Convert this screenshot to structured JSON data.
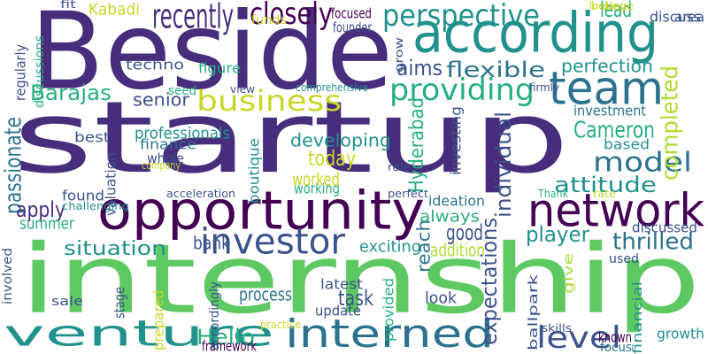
{
  "palette": {
    "dark_purple": "#440154",
    "indigo": "#472d7b",
    "blue": "#3b528b",
    "steel": "#2c728e",
    "teal": "#21918c",
    "sea_green": "#28ae80",
    "green": "#5ec962",
    "lime": "#addc30",
    "yellow": "#c8d627"
  },
  "words": [
    {
      "text": "startup",
      "color": "#472d7b",
      "vertical": false
    },
    {
      "text": "internship",
      "color": "#5ec962",
      "vertical": false
    },
    {
      "text": "Beside",
      "color": "#472d7b",
      "vertical": false
    },
    {
      "text": "opportunity",
      "color": "#440154",
      "vertical": false
    },
    {
      "text": "according",
      "color": "#21918c",
      "vertical": false
    },
    {
      "text": "team",
      "color": "#2c728e",
      "vertical": false
    },
    {
      "text": "network",
      "color": "#440154",
      "vertical": false
    },
    {
      "text": "venture",
      "color": "#21918c",
      "vertical": false
    },
    {
      "text": "interned",
      "color": "#2c728e",
      "vertical": false
    },
    {
      "text": "investor",
      "color": "#3b528b",
      "vertical": false
    },
    {
      "text": "perspective",
      "color": "#21918c",
      "vertical": false
    },
    {
      "text": "providing",
      "color": "#28ae80",
      "vertical": false
    },
    {
      "text": "business",
      "color": "#c8d627",
      "vertical": false
    },
    {
      "text": "model",
      "color": "#2c728e",
      "vertical": false
    },
    {
      "text": "level",
      "color": "#3b528b",
      "vertical": false
    },
    {
      "text": "recently",
      "color": "#472d7b",
      "vertical": false
    },
    {
      "text": "closely",
      "color": "#440154",
      "vertical": false
    },
    {
      "text": "lead",
      "color": "#28ae80",
      "vertical": false
    },
    {
      "text": "flexible",
      "color": "#2c728e",
      "vertical": false
    },
    {
      "text": "aims",
      "color": "#3b528b",
      "vertical": false
    },
    {
      "text": "perfection",
      "color": "#21918c",
      "vertical": false
    },
    {
      "text": "Barajas",
      "color": "#28ae80",
      "vertical": false
    },
    {
      "text": "senior",
      "color": "#3b528b",
      "vertical": false
    },
    {
      "text": "Cameron",
      "color": "#28ae80",
      "vertical": false
    },
    {
      "text": "investment",
      "color": "#2c728e",
      "vertical": false
    },
    {
      "text": "completed",
      "color": "#addc30",
      "vertical": true
    },
    {
      "text": "individual",
      "color": "#3b528b",
      "vertical": true
    },
    {
      "text": "passionate",
      "color": "#2c728e",
      "vertical": true
    },
    {
      "text": "today",
      "color": "#c8d627",
      "vertical": false
    },
    {
      "text": "attitude",
      "color": "#21918c",
      "vertical": false
    },
    {
      "text": "thrilled",
      "color": "#2c728e",
      "vertical": false
    },
    {
      "text": "player",
      "color": "#21918c",
      "vertical": false
    },
    {
      "text": "good",
      "color": "#3b528b",
      "vertical": false
    },
    {
      "text": "situation",
      "color": "#21918c",
      "vertical": false
    },
    {
      "text": "apply",
      "color": "#472d7b",
      "vertical": false
    },
    {
      "text": "Hello",
      "color": "#28ae80",
      "vertical": false
    },
    {
      "text": "task",
      "color": "#3b528b",
      "vertical": false
    },
    {
      "text": "expectations",
      "color": "#3b528b",
      "vertical": true
    },
    {
      "text": "reach",
      "color": "#2c728e",
      "vertical": true
    },
    {
      "text": "Hyderabad",
      "color": "#28ae80",
      "vertical": true
    },
    {
      "text": "developing",
      "color": "#21918c",
      "vertical": false
    },
    {
      "text": "professionals",
      "color": "#21918c",
      "vertical": false
    },
    {
      "text": "finance",
      "color": "#2c728e",
      "vertical": false
    },
    {
      "text": "worked",
      "color": "#c8d627",
      "vertical": false
    },
    {
      "text": "working",
      "color": "#28ae80",
      "vertical": false
    },
    {
      "text": "bank",
      "color": "#3b528b",
      "vertical": false
    },
    {
      "text": "exciting",
      "color": "#21918c",
      "vertical": false
    },
    {
      "text": "addition",
      "color": "#addc30",
      "vertical": false
    },
    {
      "text": "summer",
      "color": "#28ae80",
      "vertical": false
    },
    {
      "text": "always",
      "color": "#28ae80",
      "vertical": false
    },
    {
      "text": "ideation",
      "color": "#2c728e",
      "vertical": false
    },
    {
      "text": "discussed",
      "color": "#3b528b",
      "vertical": false
    },
    {
      "text": "process",
      "color": "#2c728e",
      "vertical": false
    },
    {
      "text": "latest",
      "color": "#3b528b",
      "vertical": false
    },
    {
      "text": "update",
      "color": "#3b528b",
      "vertical": false
    },
    {
      "text": "look",
      "color": "#3b528b",
      "vertical": false
    },
    {
      "text": "known",
      "color": "#440154",
      "vertical": false
    },
    {
      "text": "focus",
      "color": "#2c728e",
      "vertical": false
    },
    {
      "text": "growth",
      "color": "#21918c",
      "vertical": false
    },
    {
      "text": "framework",
      "color": "#440154",
      "vertical": false
    },
    {
      "text": "techno",
      "color": "#3b528b",
      "vertical": false
    },
    {
      "text": "Kabadi",
      "color": "#c8d627",
      "vertical": false
    },
    {
      "text": "fit",
      "color": "#3b528b",
      "vertical": false
    },
    {
      "text": "believe",
      "color": "#c8d627",
      "vertical": false
    },
    {
      "text": "funds",
      "color": "#c8d627",
      "vertical": false
    },
    {
      "text": "focused",
      "color": "#440154",
      "vertical": false
    },
    {
      "text": "founder",
      "color": "#3b528b",
      "vertical": false
    },
    {
      "text": "looking",
      "color": "#c8d627",
      "vertical": false
    },
    {
      "text": "area",
      "color": "#3b528b",
      "vertical": false
    },
    {
      "text": "discuss",
      "color": "#3b528b",
      "vertical": false
    },
    {
      "text": "figure",
      "color": "#28ae80",
      "vertical": false
    },
    {
      "text": "seed",
      "color": "#28ae80",
      "vertical": false
    },
    {
      "text": "view",
      "color": "#3b528b",
      "vertical": false
    },
    {
      "text": "comprehensive",
      "color": "#21918c",
      "vertical": false
    },
    {
      "text": "firmly",
      "color": "#3b528b",
      "vertical": false
    },
    {
      "text": "based",
      "color": "#21918c",
      "vertical": false
    },
    {
      "text": "best",
      "color": "#3b528b",
      "vertical": false
    },
    {
      "text": "whole",
      "color": "#3b528b",
      "vertical": false
    },
    {
      "text": "company",
      "color": "#c8d627",
      "vertical": false
    },
    {
      "text": "role",
      "color": "#3b528b",
      "vertical": false
    },
    {
      "text": "perfect",
      "color": "#3b528b",
      "vertical": false
    },
    {
      "text": "Thank",
      "color": "#28ae80",
      "vertical": false
    },
    {
      "text": "rate",
      "color": "#addc30",
      "vertical": false
    },
    {
      "text": "found",
      "color": "#3b528b",
      "vertical": false
    },
    {
      "text": "acceleration",
      "color": "#3b528b",
      "vertical": false
    },
    {
      "text": "challenging",
      "color": "#21918c",
      "vertical": false
    },
    {
      "text": "used",
      "color": "#3b528b",
      "vertical": false
    },
    {
      "text": "sale",
      "color": "#3b528b",
      "vertical": false
    },
    {
      "text": "practice",
      "color": "#c8d627",
      "vertical": false
    },
    {
      "text": "skills",
      "color": "#3b528b",
      "vertical": false
    },
    {
      "text": "regularly",
      "color": "#3b528b",
      "vertical": true
    },
    {
      "text": "discussions",
      "color": "#28ae80",
      "vertical": true
    },
    {
      "text": "grow",
      "color": "#3b528b",
      "vertical": true
    },
    {
      "text": "investing",
      "color": "#3b528b",
      "vertical": true
    },
    {
      "text": "boutique",
      "color": "#21918c",
      "vertical": true
    },
    {
      "text": "valuation",
      "color": "#3b528b",
      "vertical": true
    },
    {
      "text": "involved",
      "color": "#3b528b",
      "vertical": true
    },
    {
      "text": "stage",
      "color": "#3b528b",
      "vertical": true
    },
    {
      "text": "prepared",
      "color": "#c8d627",
      "vertical": true
    },
    {
      "text": "accordingly",
      "color": "#3b528b",
      "vertical": true
    },
    {
      "text": "provided",
      "color": "#28ae80",
      "vertical": true
    },
    {
      "text": "ballpark",
      "color": "#3b528b",
      "vertical": true
    },
    {
      "text": "financial",
      "color": "#21918c",
      "vertical": true
    },
    {
      "text": "give",
      "color": "#addc30",
      "vertical": true
    }
  ]
}
